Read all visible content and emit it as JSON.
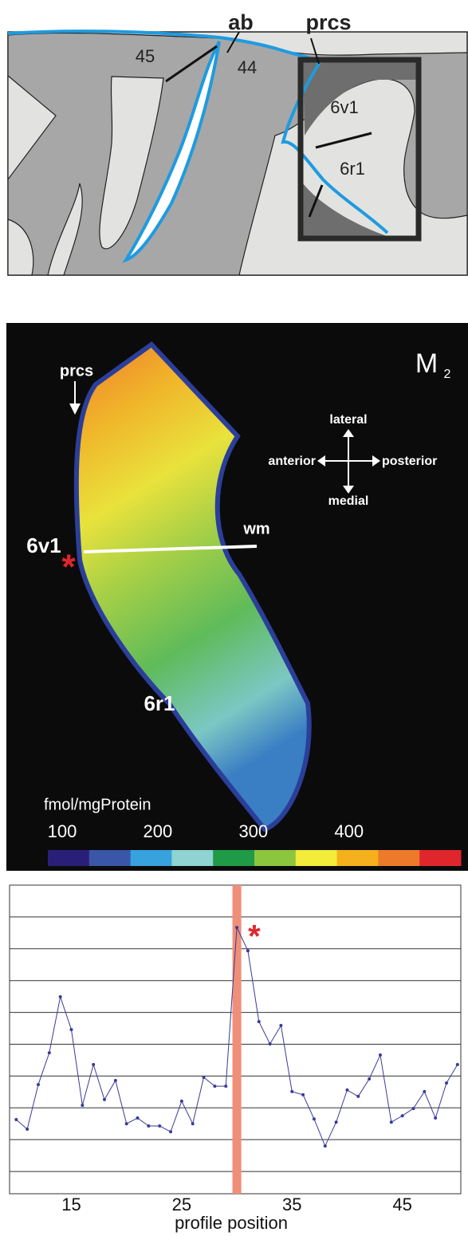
{
  "diagram": {
    "ab": "ab",
    "prcs": "prcs",
    "area_45": "45",
    "area_44": "44",
    "area_6v1": "6v1",
    "area_6r1": "6r1"
  },
  "autoradiograph": {
    "label": "M",
    "label_subscript": "2",
    "prcs": "prcs",
    "lateral": "lateral",
    "anterior": "anterior",
    "posterior": "posterior",
    "medial": "medial",
    "wm": "wm",
    "area_6v1": "6v1",
    "area_6r1": "6r1",
    "marker": "*",
    "colorbar": {
      "label": "fmol/mgProtein",
      "range": [
        85,
        517
      ],
      "ticks": [
        100,
        200,
        300,
        400
      ],
      "colors": [
        "#2a1f78",
        "#3a56a8",
        "#38a2de",
        "#8fd3d2",
        "#1f9b48",
        "#8cc63f",
        "#f3ec3a",
        "#f5b11d",
        "#ed7a2b",
        "#e0262d"
      ]
    }
  },
  "chart_data": {
    "type": "line",
    "x_label": "profile position",
    "x": [
      10,
      11,
      12,
      13,
      14,
      15,
      16,
      17,
      18,
      19,
      20,
      21,
      22,
      23,
      24,
      25,
      26,
      27,
      28,
      29,
      30,
      31,
      32,
      33,
      34,
      35,
      36,
      37,
      38,
      39,
      40,
      41,
      42,
      43,
      44,
      45,
      46,
      47,
      48,
      49,
      50
    ],
    "series": [
      {
        "color": "#3a3a9a",
        "values": [
          2.63,
          2.33,
          3.73,
          4.73,
          6.49,
          5.46,
          3.08,
          4.36,
          3.26,
          3.86,
          2.5,
          2.68,
          2.43,
          2.43,
          2.25,
          3.21,
          2.5,
          3.96,
          3.68,
          3.68,
          8.67,
          7.94,
          5.71,
          5.01,
          5.59,
          3.51,
          3.41,
          2.65,
          1.8,
          2.55,
          3.56,
          3.36,
          3.91,
          4.66,
          2.55,
          2.75,
          2.98,
          3.51,
          2.68,
          3.78,
          4.36
        ]
      }
    ],
    "xlim": [
      9.4,
      50.3
    ],
    "xticks": [
      15,
      25,
      35,
      45
    ],
    "ylim": [
      0.3,
      10
    ],
    "ygrid": [
      1,
      2,
      3,
      4,
      5,
      6,
      7,
      8,
      9
    ],
    "highlight": {
      "x": [
        29.6,
        30.4
      ],
      "color": "#ef8f78"
    },
    "annotation": {
      "text": "*",
      "x": 30,
      "y": 8.67,
      "color": "#e0262d"
    }
  }
}
